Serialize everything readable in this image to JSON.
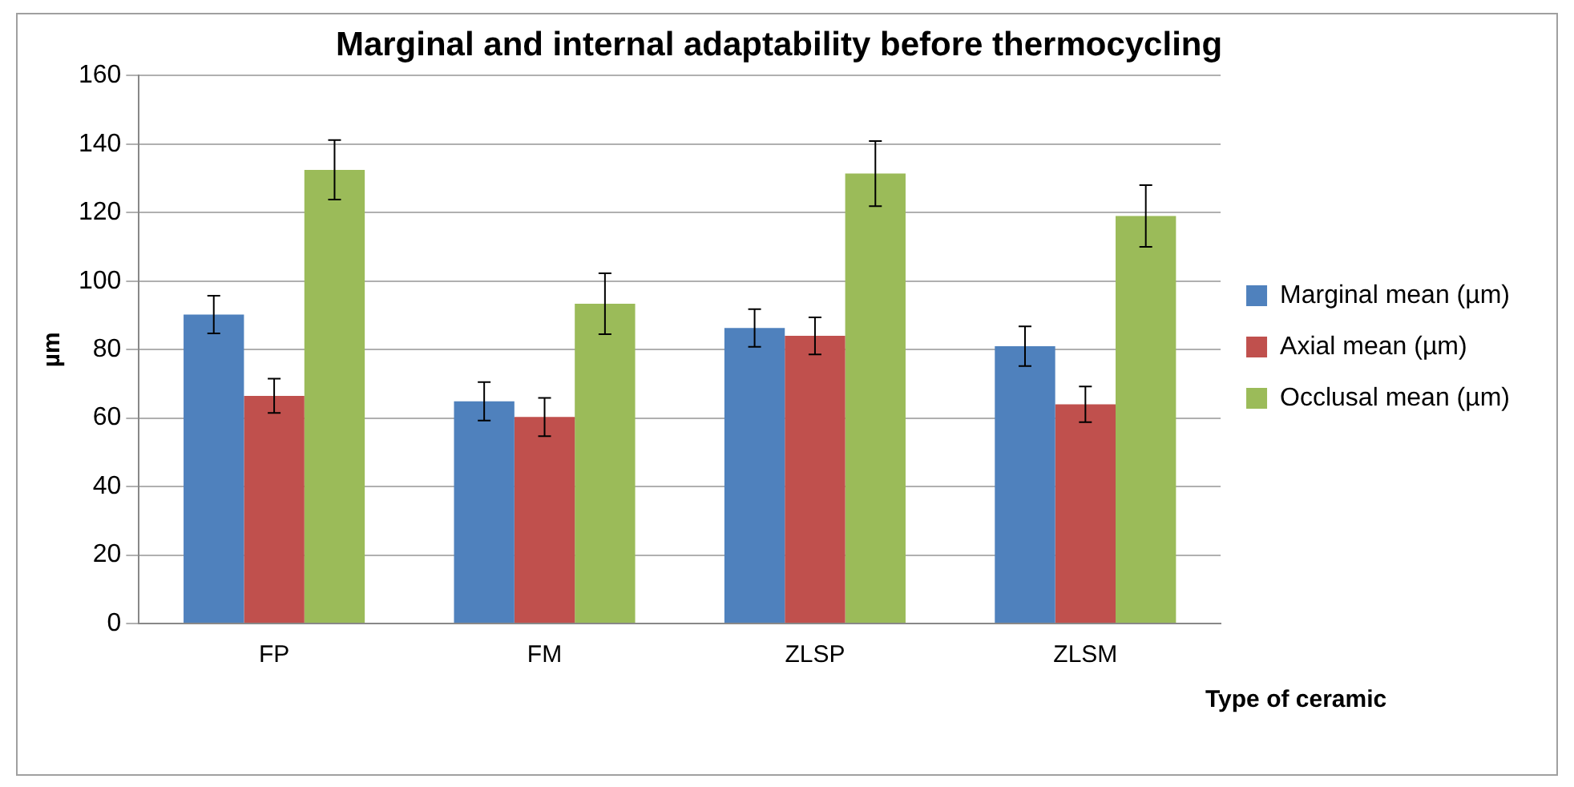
{
  "chart_data": {
    "type": "bar",
    "title": "Marginal and internal adaptability before thermocycling",
    "xlabel": "Type of ceramic",
    "ylabel": "µm",
    "categories": [
      "FP",
      "FM",
      "ZLSP",
      "ZLSM"
    ],
    "series": [
      {
        "name": "Marginal mean (µm)",
        "color": "#4f81bd",
        "values": [
          90.2,
          64.9,
          86.3,
          81.0
        ],
        "errors": [
          5.5,
          5.6,
          5.5,
          5.8
        ]
      },
      {
        "name": "Axial mean (µm)",
        "color": "#c0504d",
        "values": [
          66.5,
          60.3,
          84.0,
          64.0
        ],
        "errors": [
          5.0,
          5.6,
          5.4,
          5.2
        ]
      },
      {
        "name": "Occlusal mean (µm)",
        "color": "#9bbb59",
        "values": [
          132.5,
          93.4,
          131.4,
          119.0
        ],
        "errors": [
          8.7,
          8.9,
          9.5,
          9.0
        ]
      }
    ],
    "ylim": [
      0,
      160
    ],
    "yticks": [
      0,
      20,
      40,
      60,
      80,
      100,
      120,
      140,
      160
    ],
    "grid": "y",
    "legend": "right"
  }
}
